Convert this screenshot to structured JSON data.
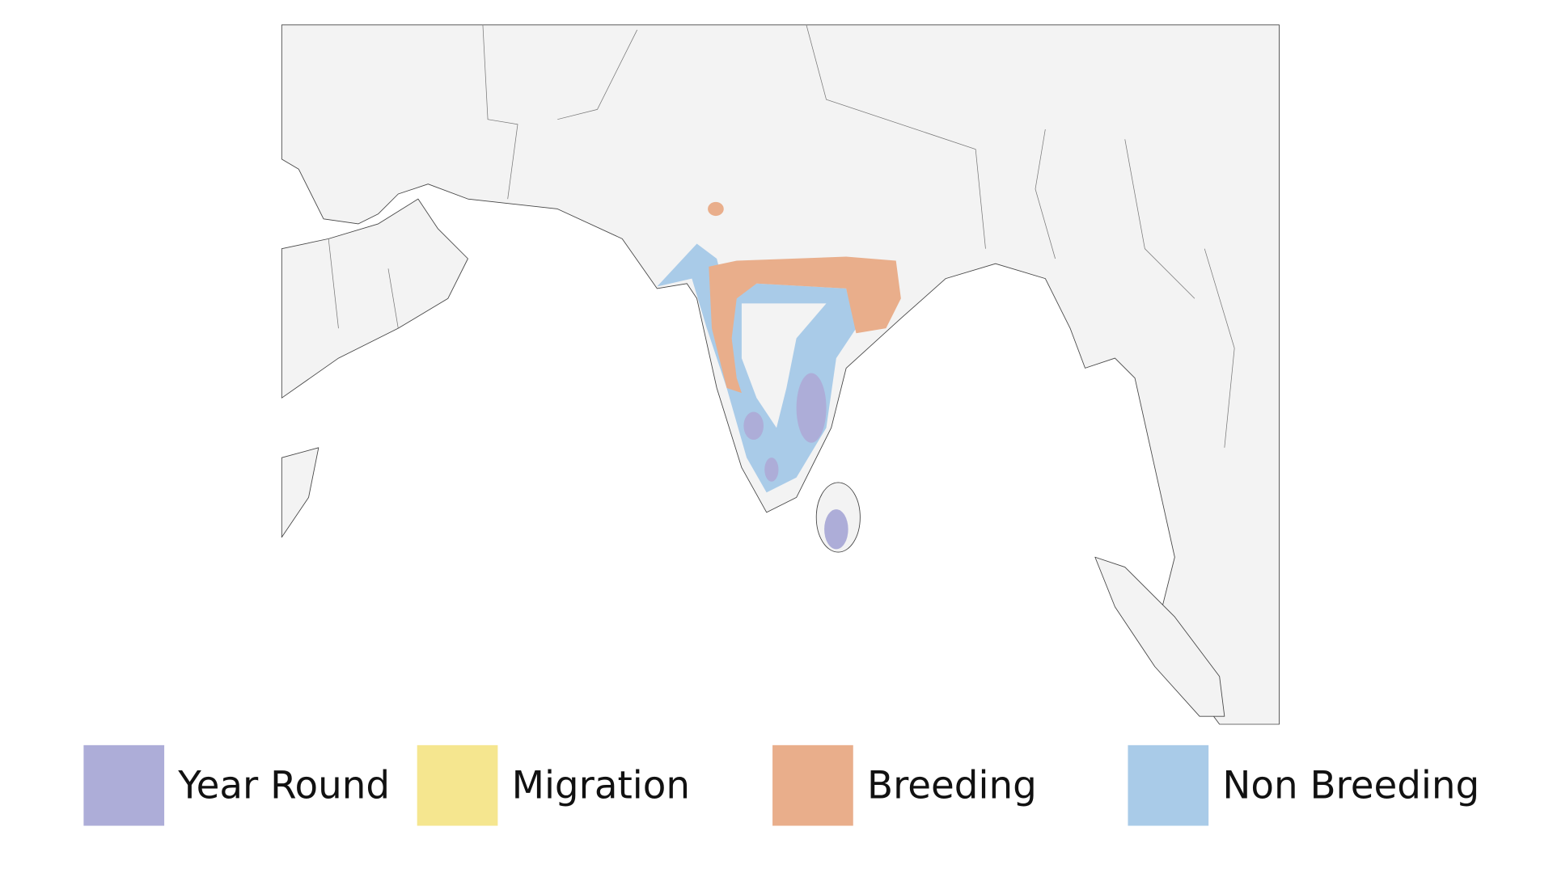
{
  "legend": [
    {
      "label": "Year Round",
      "color": "#adadd8"
    },
    {
      "label": "Migration",
      "color": "#f5e68f"
    },
    {
      "label": "Breeding",
      "color": "#e9ae8b"
    },
    {
      "label": "Non Breeding",
      "color": "#a9cbe8"
    }
  ]
}
